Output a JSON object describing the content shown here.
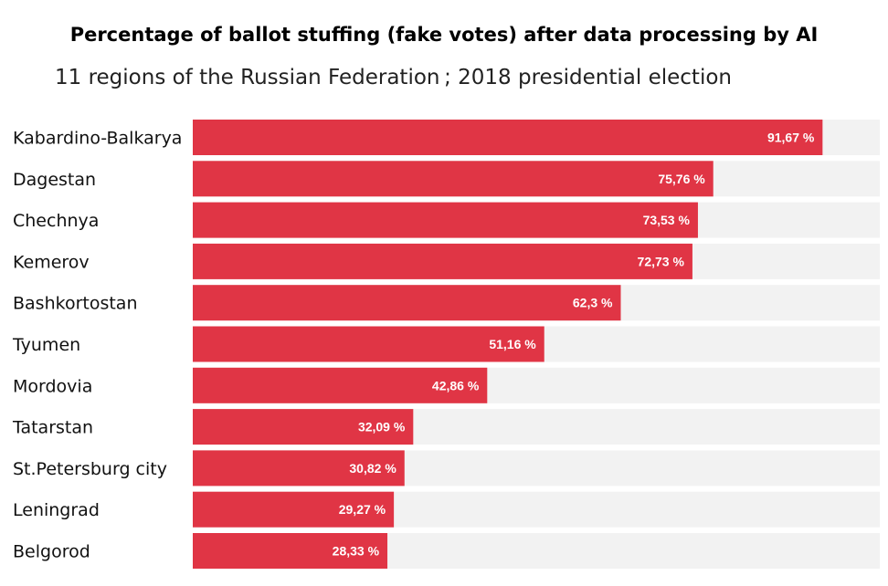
{
  "chart_data": {
    "type": "bar",
    "orientation": "horizontal",
    "title": "Percentage of ballot stuffing (fake votes) after data processing by AI",
    "subtitle": "11 regions of the Russian Federation ; 2018 presidential election",
    "categories": [
      "Kabardino-Balkarya",
      "Dagestan",
      "Chechnya",
      "Kemerov",
      "Bashkortostan",
      "Tyumen",
      "Mordovia",
      "Tatarstan",
      "St.Petersburg city",
      "Leningrad",
      "Belgorod"
    ],
    "values": [
      91.67,
      75.76,
      73.53,
      72.73,
      62.3,
      51.16,
      42.86,
      32.09,
      30.82,
      29.27,
      28.33
    ],
    "value_labels": [
      "91,67 %",
      "75,76 %",
      "73,53 %",
      "72,73 %",
      "62,3 %",
      "51,16 %",
      "42,86 %",
      "32,09 %",
      "30,82 %",
      "29,27 %",
      "28,33 %"
    ],
    "xlim": [
      0,
      100
    ],
    "grid": false,
    "legend": "none",
    "colors": {
      "bar": "#e03545",
      "track": "#f2f2f2",
      "value_text": "#ffffff"
    }
  }
}
